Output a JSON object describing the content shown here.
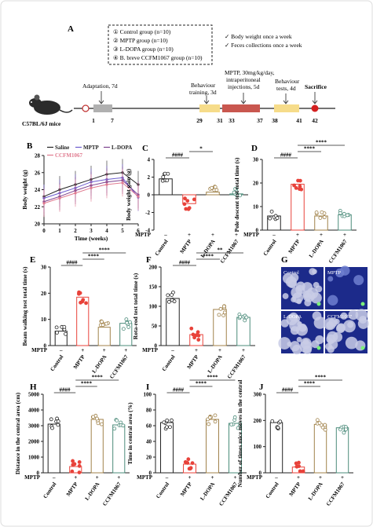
{
  "panel_a": {
    "letter": "A",
    "groups": [
      "① Control group (n=10)",
      "② MPTP group (n=10)",
      "③ L-DOPA group (n=10)",
      "④ B. breve CCFM1067 group (n=10)"
    ],
    "notes": [
      "✓  Body weight once a week",
      "✓  Feces collections once a week"
    ],
    "mouse_label": "C57BL/6J mice",
    "phases": [
      {
        "label": "Adaptation, 7d",
        "color": "#b0b0b0"
      },
      {
        "label": "Behaviour training, 3d",
        "color": "#f6dc8a"
      },
      {
        "label": "MPTP, 30mg/kg/day, intraperitoneal injections, 5d",
        "color": "#c9574f"
      },
      {
        "label": "Behaviour tests, 4d",
        "color": "#f6dc8a"
      }
    ],
    "sacrifice_label": "Sacrifice",
    "days": [
      "1",
      "7",
      "29",
      "31",
      "33",
      "37",
      "38",
      "41",
      "42"
    ]
  },
  "panel_b": {
    "letter": "B",
    "legend": [
      "Saline",
      "MPTP",
      "L-DOPA",
      "CCFM1067"
    ],
    "colors": [
      "#222222",
      "#6a5acd",
      "#7b3f8c",
      "#e07a8f"
    ]
  },
  "chart_data": [
    {
      "id": "B",
      "type": "line",
      "x": [
        0,
        1,
        2,
        3,
        4,
        5,
        6
      ],
      "xlabel": "Time (weeks)",
      "ylabel": "Body weight (g)",
      "ylim": [
        20,
        28
      ],
      "yticks": [
        20,
        22,
        24,
        26,
        28
      ],
      "xticks": [
        0,
        1,
        2,
        3,
        4,
        5,
        6
      ],
      "series": [
        {
          "name": "Saline",
          "values": [
            23.2,
            24.0,
            24.6,
            25.2,
            25.8,
            26.0,
            24.6
          ]
        },
        {
          "name": "MPTP",
          "values": [
            23.0,
            23.6,
            24.2,
            24.9,
            25.2,
            25.4,
            23.1
          ]
        },
        {
          "name": "L-DOPA",
          "values": [
            22.6,
            23.2,
            23.9,
            24.5,
            24.9,
            25.1,
            23.4
          ]
        },
        {
          "name": "CCFM1067",
          "values": [
            22.4,
            23.0,
            23.6,
            24.2,
            24.6,
            24.8,
            23.2
          ]
        }
      ]
    },
    {
      "id": "C",
      "type": "bar",
      "letter": "C",
      "ylabel": "Body weight gain (g)",
      "ylim": [
        -4,
        4
      ],
      "yticks": [
        -4,
        -2,
        0,
        2,
        4
      ],
      "categories": [
        "Control",
        "MPTP",
        "L-DOPA",
        "CCFM1067"
      ],
      "mptp": [
        "–",
        "+",
        "+",
        "+"
      ],
      "values": [
        1.8,
        -1.0,
        0.3,
        0.1
      ],
      "annotations": [
        {
          "text": "####",
          "from": 0,
          "to": 1,
          "level": 0
        },
        {
          "text": "*",
          "from": 1,
          "to": 2,
          "level": 1
        }
      ]
    },
    {
      "id": "D",
      "type": "bar",
      "letter": "D",
      "ylabel": "Pole descent test total time (s)",
      "ylim": [
        0,
        30
      ],
      "yticks": [
        0,
        10,
        20,
        30
      ],
      "categories": [
        "Control",
        "MPTP",
        "L-DOPA",
        "CCFM1067"
      ],
      "mptp": [
        "–",
        "+",
        "+",
        "+"
      ],
      "values": [
        6,
        19.5,
        6,
        6.5
      ],
      "annotations": [
        {
          "text": "####",
          "from": 0,
          "to": 1,
          "level": 0
        },
        {
          "text": "****",
          "from": 1,
          "to": 2,
          "level": 1
        },
        {
          "text": "****",
          "from": 1,
          "to": 3,
          "level": 2
        }
      ]
    },
    {
      "id": "E",
      "type": "bar",
      "letter": "E",
      "ylabel": "Beam walking test total time (s)",
      "ylim": [
        0,
        30
      ],
      "yticks": [
        0,
        10,
        20,
        30
      ],
      "categories": [
        "Control",
        "MPTP",
        "L-DOPA",
        "CCFM1067"
      ],
      "mptp": [
        "–",
        "+",
        "+",
        "+"
      ],
      "values": [
        5.5,
        18.5,
        7,
        8.5
      ],
      "annotations": [
        {
          "text": "####",
          "from": 0,
          "to": 1,
          "level": 0
        },
        {
          "text": "****",
          "from": 1,
          "to": 2,
          "level": 1
        },
        {
          "text": "****",
          "from": 1,
          "to": 3,
          "level": 2
        }
      ]
    },
    {
      "id": "F",
      "type": "bar",
      "letter": "F",
      "ylabel": "Rota-rod test total time (s)",
      "ylim": [
        0,
        200
      ],
      "yticks": [
        0,
        50,
        100,
        150,
        200
      ],
      "categories": [
        "Control",
        "MPTP",
        "L-DOPA",
        "CCFM1067"
      ],
      "mptp": [
        "–",
        "+",
        "+",
        "+"
      ],
      "values": [
        120,
        28,
        92,
        72
      ],
      "annotations": [
        {
          "text": "####",
          "from": 0,
          "to": 1,
          "level": 0
        },
        {
          "text": "****",
          "from": 1,
          "to": 2,
          "level": 1
        },
        {
          "text": "**",
          "from": 1,
          "to": 3,
          "level": 2
        }
      ]
    },
    {
      "id": "H",
      "type": "bar",
      "letter": "H",
      "ylabel": "Distance in the central area (cm)",
      "ylim": [
        0,
        5000
      ],
      "yticks": [
        0,
        1000,
        2000,
        3000,
        4000,
        5000
      ],
      "categories": [
        "Control",
        "MPTP",
        "L-DOPA",
        "CCFM1067"
      ],
      "mptp": [
        "–",
        "+",
        "+",
        "+"
      ],
      "values": [
        3100,
        400,
        3400,
        3050
      ],
      "annotations": [
        {
          "text": "####",
          "from": 0,
          "to": 1,
          "level": 0
        },
        {
          "text": "****",
          "from": 1,
          "to": 2,
          "level": 1
        },
        {
          "text": "****",
          "from": 1,
          "to": 3,
          "level": 2
        }
      ]
    },
    {
      "id": "I",
      "type": "bar",
      "letter": "I",
      "ylabel": "Time in central area (%)",
      "ylim": [
        0,
        100
      ],
      "yticks": [
        0,
        20,
        40,
        60,
        80,
        100
      ],
      "categories": [
        "Control",
        "MPTP",
        "L-DOPA",
        "CCFM1067"
      ],
      "mptp": [
        "–",
        "+",
        "+",
        "+"
      ],
      "values": [
        64,
        11,
        68,
        63
      ],
      "annotations": [
        {
          "text": "####",
          "from": 0,
          "to": 1,
          "level": 0
        },
        {
          "text": "****",
          "from": 1,
          "to": 2,
          "level": 1
        },
        {
          "text": "****",
          "from": 1,
          "to": 3,
          "level": 2
        }
      ]
    },
    {
      "id": "J",
      "type": "bar",
      "letter": "J",
      "ylabel": "Number of times mice moves in the central",
      "ylim": [
        0,
        300
      ],
      "yticks": [
        0,
        100,
        200,
        300
      ],
      "categories": [
        "Control",
        "MPTP",
        "L-DOPA",
        "CCFM1067"
      ],
      "mptp": [
        "–",
        "+",
        "+",
        "+"
      ],
      "values": [
        192,
        22,
        185,
        172
      ],
      "annotations": [
        {
          "text": "####",
          "from": 0,
          "to": 1,
          "level": 0
        },
        {
          "text": "****",
          "from": 1,
          "to": 2,
          "level": 1
        },
        {
          "text": "****",
          "from": 1,
          "to": 3,
          "level": 2
        }
      ]
    }
  ],
  "bar_colors": [
    "#222222",
    "#e8423a",
    "#a0824a",
    "#4b8b7a"
  ],
  "mptp_label": "MPTP",
  "panel_g": {
    "letter": "G",
    "labels": [
      "Control",
      "MPTP",
      "L-DOPA",
      "CCFM1067"
    ]
  }
}
